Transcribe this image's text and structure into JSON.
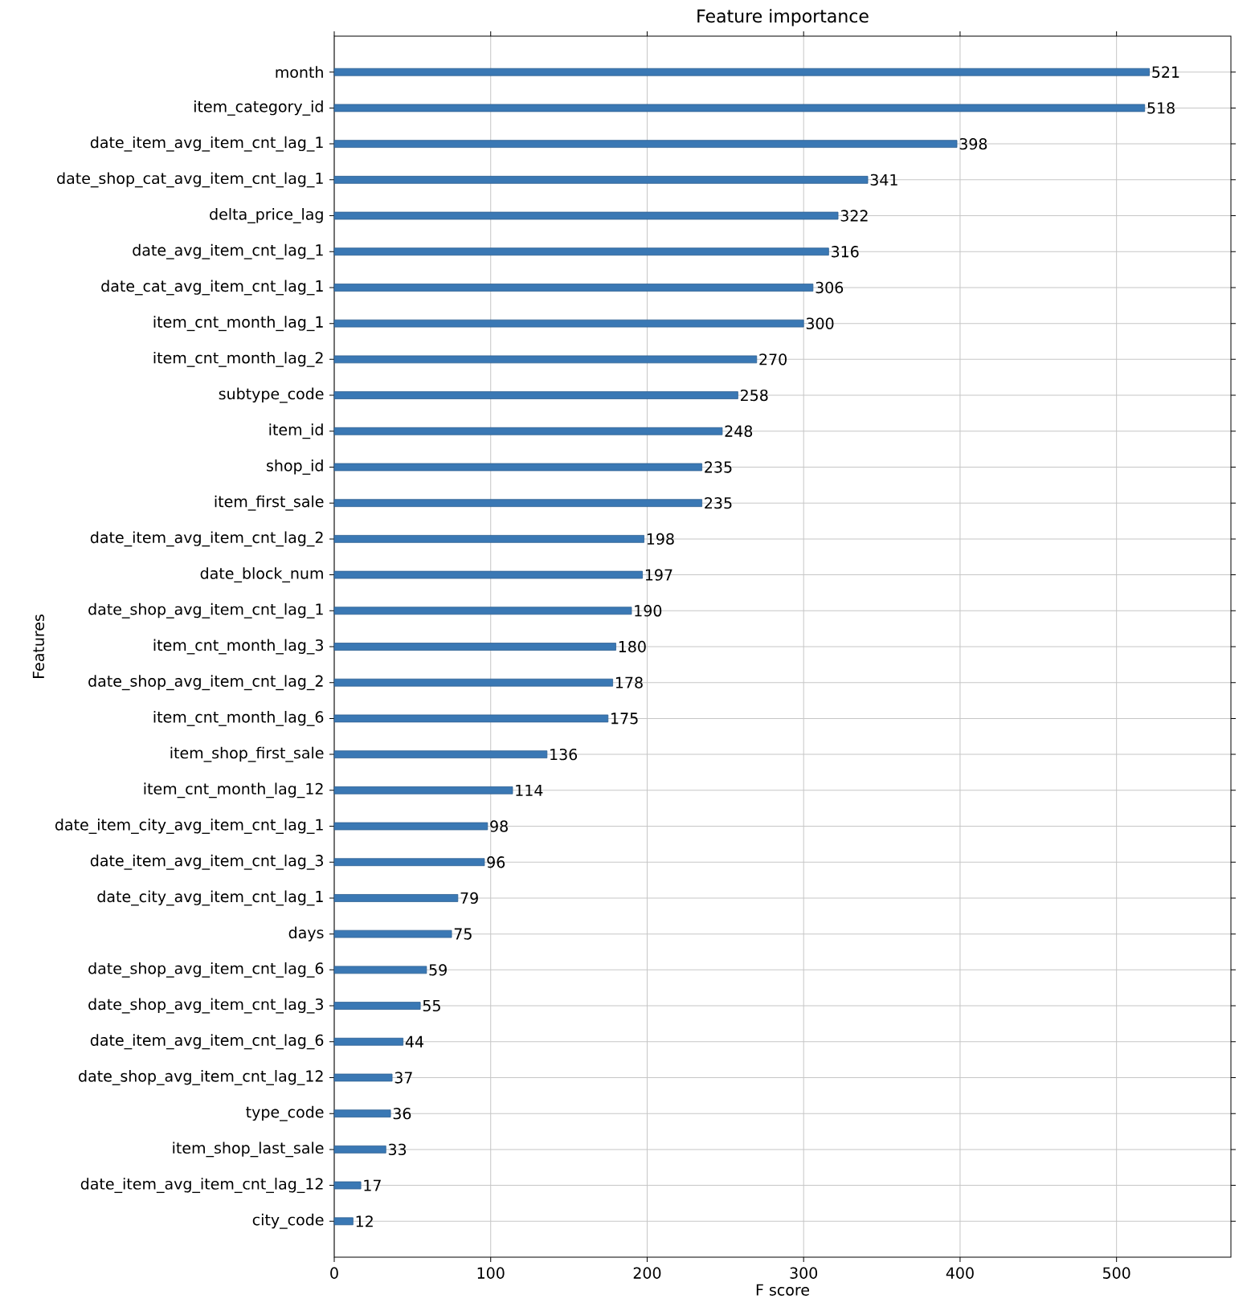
{
  "chart_data": {
    "type": "bar",
    "orientation": "horizontal",
    "title": "Feature importance",
    "xlabel": "F score",
    "ylabel": "Features",
    "categories": [
      "month",
      "item_category_id",
      "date_item_avg_item_cnt_lag_1",
      "date_shop_cat_avg_item_cnt_lag_1",
      "delta_price_lag",
      "date_avg_item_cnt_lag_1",
      "date_cat_avg_item_cnt_lag_1",
      "item_cnt_month_lag_1",
      "item_cnt_month_lag_2",
      "subtype_code",
      "item_id",
      "shop_id",
      "item_first_sale",
      "date_item_avg_item_cnt_lag_2",
      "date_block_num",
      "date_shop_avg_item_cnt_lag_1",
      "item_cnt_month_lag_3",
      "date_shop_avg_item_cnt_lag_2",
      "item_cnt_month_lag_6",
      "item_shop_first_sale",
      "item_cnt_month_lag_12",
      "date_item_city_avg_item_cnt_lag_1",
      "date_item_avg_item_cnt_lag_3",
      "date_city_avg_item_cnt_lag_1",
      "days",
      "date_shop_avg_item_cnt_lag_6",
      "date_shop_avg_item_cnt_lag_3",
      "date_item_avg_item_cnt_lag_6",
      "date_shop_avg_item_cnt_lag_12",
      "type_code",
      "item_shop_last_sale",
      "date_item_avg_item_cnt_lag_12",
      "city_code"
    ],
    "values": [
      521,
      518,
      398,
      341,
      322,
      316,
      306,
      300,
      270,
      258,
      248,
      235,
      235,
      198,
      197,
      190,
      180,
      178,
      175,
      136,
      114,
      98,
      96,
      79,
      75,
      59,
      55,
      44,
      37,
      36,
      33,
      17,
      12
    ],
    "color": "#3a78b4",
    "data_labels": true,
    "grid": true,
    "xlim": [
      0,
      573.1
    ],
    "xticks": [
      0,
      100,
      200,
      300,
      400,
      500
    ]
  }
}
